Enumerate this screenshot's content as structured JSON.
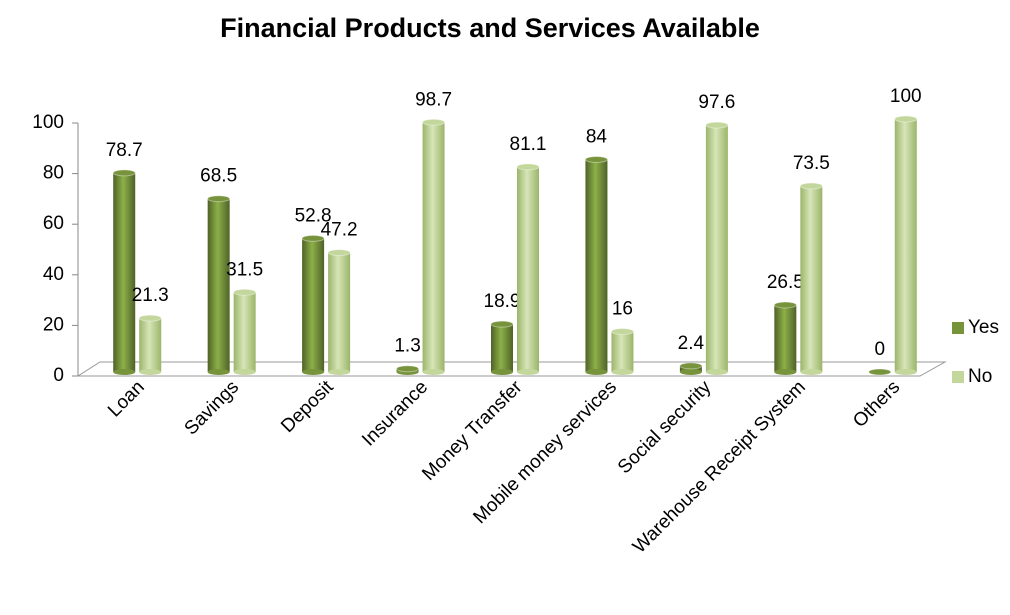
{
  "chart_data": {
    "type": "bar",
    "title": "Financial Products and Services Available",
    "categories": [
      "Loan",
      "Savings",
      "Deposit",
      "Insurance",
      "Money Transfer",
      "Mobile money services",
      "Social security",
      "Warehouse Receipt System",
      "Others"
    ],
    "series": [
      {
        "name": "Yes",
        "color": "#77933c",
        "values": [
          78.7,
          68.5,
          52.8,
          1.3,
          18.9,
          84,
          2.4,
          26.5,
          0
        ]
      },
      {
        "name": "No",
        "color": "#c3d69b",
        "values": [
          21.3,
          31.5,
          47.2,
          98.7,
          81.1,
          16,
          97.6,
          73.5,
          100
        ]
      }
    ],
    "ylim": [
      0,
      100
    ],
    "yticks": [
      0,
      20,
      40,
      60,
      80,
      100
    ],
    "grid": false,
    "legend": "right"
  }
}
